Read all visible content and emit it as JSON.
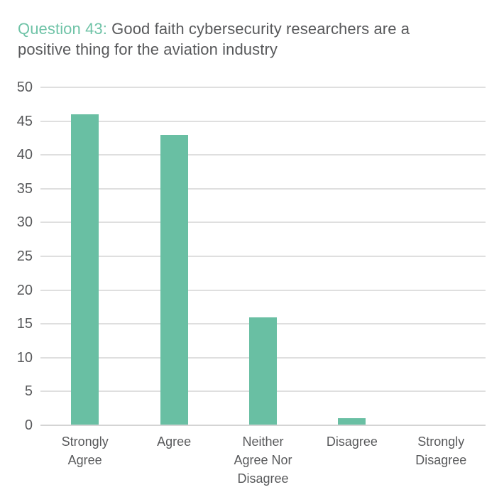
{
  "title": {
    "prefix": "Question 43:",
    "text": "Good faith cybersecurity researchers are a positive thing for the aviation industry"
  },
  "colors": {
    "bar": "#69BFA3",
    "title_accent": "#6FC3A7",
    "text_dark": "#58595B",
    "gridline": "#DFDFDF",
    "baseline": "#D4D4D4",
    "background": "#FFFFFF"
  },
  "chart_data": {
    "type": "bar",
    "title": "Question 43: Good faith cybersecurity researchers are a positive thing for the aviation industry",
    "categories": [
      "Strongly Agree",
      "Agree",
      "Neither Agree Nor Disagree",
      "Disagree",
      "Strongly Disagree"
    ],
    "values": [
      46,
      43,
      16,
      1,
      0
    ],
    "xlabel": "",
    "ylabel": "",
    "ylim": [
      0,
      50
    ],
    "yticks": [
      0,
      5,
      10,
      15,
      20,
      25,
      30,
      35,
      40,
      45,
      50
    ],
    "grid": true,
    "legend": "none",
    "bar_color": "#69BFA3"
  }
}
